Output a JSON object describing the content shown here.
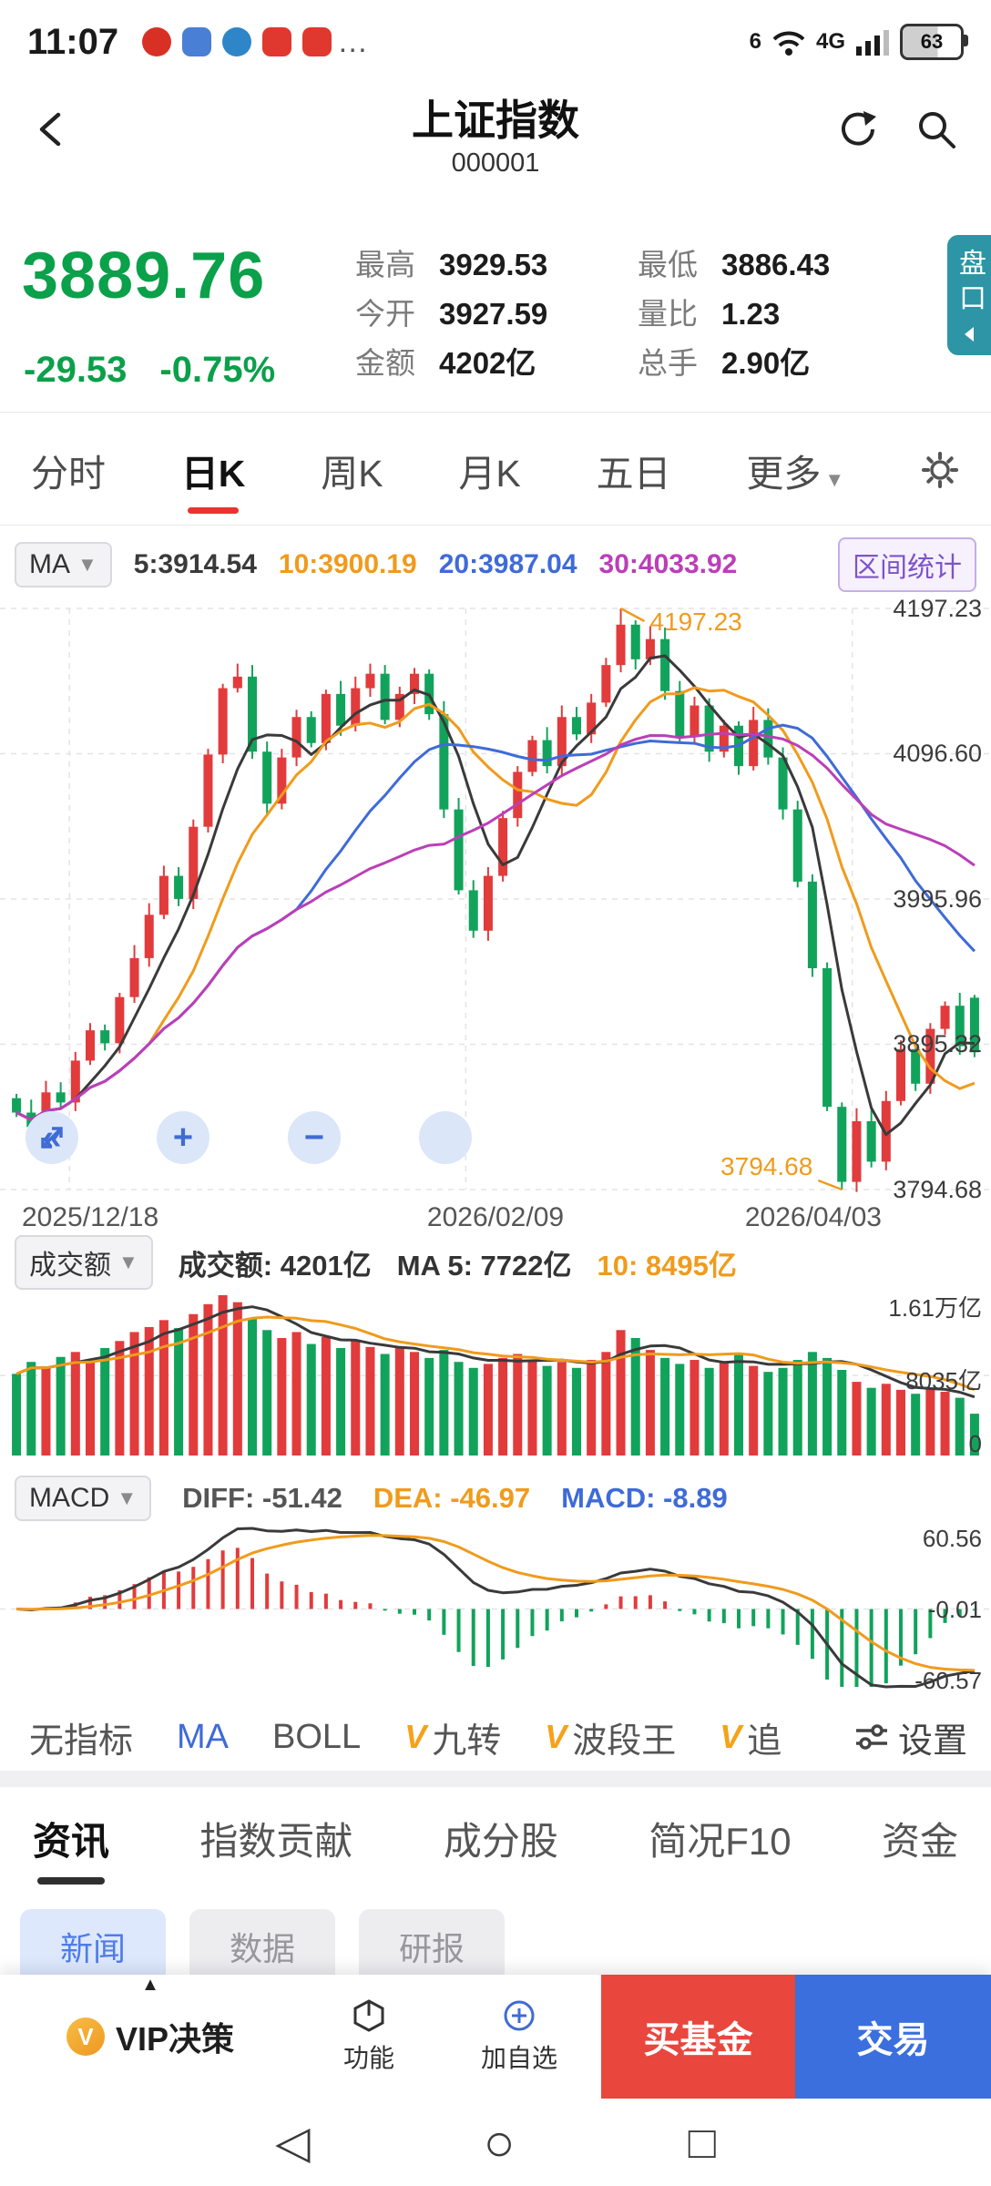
{
  "status_bar": {
    "time": "11:07",
    "wifi_label": "6",
    "network": "4G",
    "battery": "63",
    "more": "…"
  },
  "header": {
    "title": "上证指数",
    "code": "000001"
  },
  "quote": {
    "price": "3889.76",
    "change": "-29.53",
    "change_pct": "-0.75%",
    "col1": [
      {
        "label": "最高",
        "value": "3929.53"
      },
      {
        "label": "今开",
        "value": "3927.59"
      },
      {
        "label": "金额",
        "value": "4202亿"
      }
    ],
    "col2": [
      {
        "label": "最低",
        "value": "3886.43"
      },
      {
        "label": "量比",
        "value": "1.23"
      },
      {
        "label": "总手",
        "value": "2.90亿"
      }
    ],
    "pankou": "盘口"
  },
  "period_tabs": {
    "items": [
      "分时",
      "日K",
      "周K",
      "月K",
      "五日",
      "更多"
    ],
    "active": "日K"
  },
  "ma_bar": {
    "selector": "MA",
    "ma5": "5:3914.54",
    "ma10": "10:3900.19",
    "ma20": "20:3987.04",
    "ma30": "30:4033.92",
    "range_stat": "区间统计"
  },
  "chart_controls": {
    "collapse": "«",
    "zoom_in": "+",
    "zoom_out": "−"
  },
  "volume": {
    "selector": "成交额",
    "turnover": "成交额: 4201亿",
    "ma5": "MA 5: 7722亿",
    "ma10": "10: 8495亿",
    "y_labels": [
      "1.61万亿",
      "8035亿",
      "0"
    ]
  },
  "macd": {
    "selector": "MACD",
    "diff": "DIFF: -51.42",
    "dea": "DEA: -46.97",
    "macd": "MACD: -8.89",
    "y_labels": [
      "60.56",
      "-0.01",
      "-60.57"
    ]
  },
  "indicator_bar": {
    "items": [
      {
        "label": "无指标"
      },
      {
        "label": "MA"
      },
      {
        "label": "BOLL"
      },
      {
        "label": "九转"
      },
      {
        "label": "波段王"
      },
      {
        "label": "追"
      }
    ],
    "active": "MA",
    "settings": "设置"
  },
  "news_tabs": {
    "items": [
      "资讯",
      "指数贡献",
      "成分股",
      "简况F10",
      "资金"
    ],
    "active": "资讯"
  },
  "sub_tabs": {
    "items": [
      "新闻",
      "数据",
      "研报"
    ],
    "active": "新闻"
  },
  "bottom_bar": {
    "vip": "VIP决策",
    "fn": "功能",
    "add": "加自选",
    "buy": "买基金",
    "trade": "交易"
  },
  "icons": {
    "v_badge": "V",
    "caret": "▼",
    "nav_back": "◁",
    "nav_home": "○",
    "nav_recents": "□"
  },
  "chart_data": {
    "type": "candlestick",
    "dates": [
      "2025/12/18",
      "2026/02/09",
      "2026/04/03"
    ],
    "price_max": 4197.23,
    "price_min": 3794.68,
    "axis_prices": [
      4197.23,
      4096.6,
      3995.96,
      3895.32,
      3794.68
    ],
    "axis_labels": [
      "4197.23",
      "4096.60",
      "3995.96",
      "3895.32",
      "3794.68"
    ],
    "peak_index": 41,
    "peak_label": "4197.23",
    "low_index": 56,
    "low_label": "3794.68",
    "last_candle": {
      "open": 3927.59,
      "high": 3929.53,
      "low": 3886.43,
      "close": 3889.76
    },
    "closes": [
      3848,
      3838,
      3862,
      3855,
      3884,
      3905,
      3896,
      3928,
      3955,
      3985,
      4012,
      3996,
      4046,
      4096,
      4142,
      4150,
      4098,
      4062,
      4094,
      4122,
      4104,
      4138,
      4116,
      4142,
      4152,
      4120,
      4138,
      4152,
      4124,
      4058,
      4002,
      3974,
      4012,
      4052,
      4084,
      4106,
      4088,
      4122,
      4110,
      4132,
      4158,
      4186,
      4162,
      4176,
      4140,
      4108,
      4130,
      4098,
      4116,
      4088,
      4120,
      4094,
      4058,
      4008,
      3948,
      3852,
      3800,
      3842,
      3814,
      3856,
      3892,
      3868,
      3906,
      3922,
      3894,
      3889.76
    ],
    "vol_max": 16100,
    "vol_mid": 8035,
    "volumes": [
      8200,
      9400,
      8800,
      9900,
      10400,
      9600,
      10800,
      11500,
      12400,
      12900,
      13600,
      12800,
      14200,
      15200,
      16100,
      15400,
      13800,
      12600,
      11800,
      12400,
      11200,
      11900,
      10800,
      11600,
      10900,
      10200,
      10800,
      10400,
      9800,
      10600,
      9400,
      8800,
      9200,
      9800,
      10200,
      9600,
      9000,
      9400,
      8800,
      9600,
      10400,
      12600,
      11800,
      10600,
      9800,
      9200,
      9600,
      8800,
      9400,
      10200,
      9000,
      8400,
      8800,
      9600,
      10400,
      9800,
      8600,
      7400,
      6800,
      7200,
      6600,
      6200,
      6800,
      6400,
      5800,
      4201
    ],
    "colors": {
      "up": "#e23b3c",
      "down": "#11a35b",
      "ma5": "#3a3a3a",
      "ma10": "#f09b1c",
      "ma20": "#3f6bd8",
      "ma30": "#bb3fb8"
    }
  }
}
